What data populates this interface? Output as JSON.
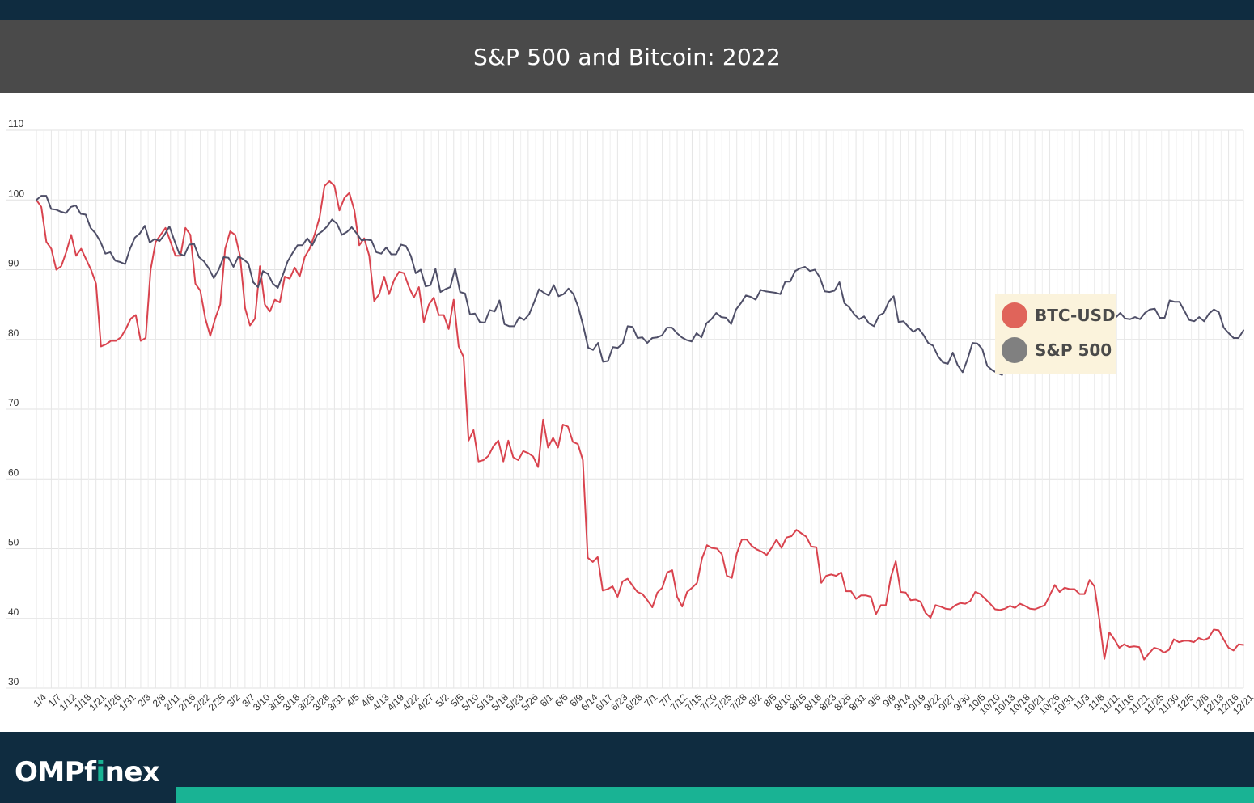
{
  "title": "S&P 500 and Bitcoin: 2022",
  "brand": {
    "logo_prefix": "OMPf",
    "logo_dot_letter": "i",
    "logo_suffix": "nex"
  },
  "colors": {
    "header_dark": "#0f2c40",
    "title_bar": "#4a4a4a",
    "accent": "#19b394",
    "btc": "#d9434e",
    "sp500": "#4f4f68",
    "legend_bg": "#fbf3dc"
  },
  "legend": {
    "placement": "right",
    "entries": [
      {
        "name": "BTC-USD",
        "dot_color": "#e0645a"
      },
      {
        "name": "S&P 500",
        "dot_color": "#808080"
      }
    ]
  },
  "chart_data": {
    "type": "line",
    "title": "S&P 500 and Bitcoin: 2022",
    "xlabel": "",
    "ylabel": "",
    "ylim": [
      30,
      110
    ],
    "yticks": [
      30,
      40,
      50,
      60,
      70,
      80,
      90,
      100,
      110
    ],
    "grid": true,
    "x_tick_labels": [
      "1/4",
      "1/7",
      "1/12",
      "1/18",
      "1/21",
      "1/26",
      "1/31",
      "2/3",
      "2/8",
      "2/11",
      "2/16",
      "2/22",
      "2/25",
      "3/2",
      "3/7",
      "3/10",
      "3/15",
      "3/18",
      "3/23",
      "3/28",
      "3/31",
      "4/5",
      "4/8",
      "4/13",
      "4/19",
      "4/22",
      "4/27",
      "5/2",
      "5/5",
      "5/10",
      "5/13",
      "5/18",
      "5/23",
      "5/26",
      "6/1",
      "6/6",
      "6/9",
      "6/14",
      "6/17",
      "6/23",
      "6/28",
      "7/1",
      "7/7",
      "7/12",
      "7/15",
      "7/20",
      "7/25",
      "7/28",
      "8/2",
      "8/5",
      "8/10",
      "8/15",
      "8/18",
      "8/23",
      "8/26",
      "8/31",
      "9/6",
      "9/9",
      "9/14",
      "9/19",
      "9/22",
      "9/27",
      "9/30",
      "10/5",
      "10/10",
      "10/13",
      "10/18",
      "10/21",
      "10/26",
      "10/31",
      "11/3",
      "11/8",
      "11/11",
      "11/16",
      "11/21",
      "11/25",
      "11/30",
      "12/5",
      "12/8",
      "12/13",
      "12/16",
      "12/21"
    ],
    "series": [
      {
        "name": "BTC-USD",
        "color": "#d9434e",
        "values": [
          100,
          99,
          94,
          93,
          90,
          90.5,
          92.5,
          95,
          92,
          93,
          91.5,
          90,
          88,
          79,
          79.3,
          79.8,
          79.8,
          80.3,
          81.5,
          83,
          83.5,
          79.8,
          80.2,
          90,
          94,
          95,
          96,
          94,
          92,
          92,
          96,
          95,
          88,
          87,
          83,
          80.5,
          83,
          85,
          93,
          95.5,
          95,
          92,
          84.5,
          82,
          83,
          90.5,
          85,
          84,
          85.7,
          85.3,
          89,
          88.7,
          90.3,
          89,
          91.8,
          93,
          95,
          97.5,
          102,
          102.7,
          102,
          98.5,
          100.3,
          101,
          98.5,
          93.5,
          94.5,
          92,
          85.5,
          86.5,
          89,
          86.5,
          88.5,
          89.7,
          89.5,
          87.5,
          86,
          87.5,
          82.5,
          85,
          86,
          83.5,
          83.5,
          81.5,
          85.7,
          79,
          77.5,
          65.5,
          67,
          62.5,
          62.7,
          63.3,
          64.7,
          65.5,
          62.5,
          65.5,
          63.1,
          62.7,
          64,
          63.7,
          63.2,
          61.7,
          68.5,
          64.5,
          65.9,
          64.5,
          67.8,
          67.5,
          65.3,
          65,
          62.7,
          48.7,
          48.1,
          48.8,
          44,
          44.2,
          44.6,
          43.1,
          45.3,
          45.7,
          44.7,
          43.8,
          43.5,
          42.6,
          41.6,
          43.7,
          44.4,
          46.6,
          46.9,
          43.1,
          41.7,
          43.8,
          44.4,
          45.1,
          48.6,
          50.5,
          50.1,
          50,
          49.2,
          46.1,
          45.8,
          49.3,
          51.3,
          51.3,
          50.4,
          49.9,
          49.6,
          49.1,
          50.1,
          51.3,
          50.1,
          51.6,
          51.8,
          52.7,
          52.2,
          51.7,
          50.3,
          50.2,
          45.1,
          46.1,
          46.3,
          46.1,
          46.6,
          43.9,
          43.9,
          42.8,
          43.3,
          43.3,
          43.1,
          40.6,
          41.9,
          41.9,
          45.9,
          48.2,
          43.8,
          43.7,
          42.6,
          42.7,
          42.4,
          40.8,
          40.1,
          41.9,
          41.7,
          41.4,
          41.3,
          41.9,
          42.2,
          42.1,
          42.5,
          43.8,
          43.5,
          42.8,
          42.1,
          41.3,
          41.2,
          41.4,
          41.8,
          41.5,
          42.1,
          41.8,
          41.4,
          41.3,
          41.6,
          41.9,
          43.3,
          44.8,
          43.8,
          44.4,
          44.2,
          44.2,
          43.5,
          43.5,
          45.5,
          44.6,
          39.8,
          34.2,
          38,
          37,
          35.8,
          36.3,
          35.9,
          36,
          35.9,
          34.1,
          35,
          35.8,
          35.6,
          35.1,
          35.5,
          37,
          36.6,
          36.8,
          36.8,
          36.6,
          37.2,
          36.9,
          37.2,
          38.4,
          38.3,
          37,
          35.8,
          35.4,
          36.3,
          36.2
        ]
      },
      {
        "name": "S&P 500",
        "color": "#4f4f68",
        "values": [
          100,
          100.6,
          100.6,
          98.7,
          98.6,
          98.3,
          98.1,
          99,
          99.2,
          98,
          97.9,
          96,
          95.2,
          94,
          92.3,
          92.5,
          91.3,
          91.1,
          90.8,
          93,
          94.6,
          95.2,
          96.3,
          93.9,
          94.4,
          94.1,
          95,
          96.2,
          94.2,
          92.3,
          92,
          93.6,
          93.7,
          91.8,
          91.2,
          90.2,
          88.8,
          90,
          91.8,
          91.7,
          90.4,
          91.9,
          91.5,
          90.9,
          88.2,
          87.5,
          89.8,
          89.4,
          88,
          87.4,
          89.2,
          91.2,
          92.4,
          93.5,
          93.5,
          94.5,
          93.5,
          95,
          95.5,
          96.2,
          97.2,
          96.6,
          95,
          95.4,
          96.1,
          95.2,
          94.2,
          94.3,
          94.2,
          92.5,
          92.3,
          93.2,
          92.2,
          92.2,
          93.6,
          93.4,
          92,
          89.5,
          90,
          87.6,
          87.8,
          90.1,
          86.8,
          87.2,
          87.5,
          90.2,
          86.8,
          86.6,
          83.6,
          83.7,
          82.5,
          82.4,
          84.2,
          84,
          85.6,
          82.2,
          81.9,
          81.9,
          83.2,
          82.8,
          83.6,
          85.3,
          87.2,
          86.7,
          86.3,
          87.8,
          86.2,
          86.5,
          87.3,
          86.5,
          84.6,
          81.9,
          78.8,
          78.5,
          79.5,
          76.8,
          76.9,
          78.9,
          78.8,
          79.4,
          81.9,
          81.8,
          80.2,
          80.3,
          79.5,
          80.2,
          80.3,
          80.6,
          81.7,
          81.7,
          80.9,
          80.3,
          79.9,
          79.7,
          80.9,
          80.3,
          82.3,
          82.9,
          83.8,
          83.2,
          83.1,
          82.2,
          84.3,
          85.2,
          86.3,
          86.1,
          85.7,
          87.1,
          86.9,
          86.8,
          86.7,
          86.5,
          88.3,
          88.3,
          89.8,
          90.2,
          90.4,
          89.8,
          90,
          88.9,
          86.9,
          86.8,
          87,
          88.2,
          85.2,
          84.6,
          83.6,
          82.9,
          83.3,
          82.3,
          81.9,
          83.4,
          83.8,
          85.4,
          86.2,
          82.5,
          82.6,
          81.8,
          81.1,
          81.6,
          80.7,
          79.5,
          79.1,
          77.6,
          76.7,
          76.5,
          78.1,
          76.3,
          75.3,
          77.2,
          79.5,
          79.4,
          78.6,
          76.2,
          75.6,
          75.2,
          74.9,
          76.9,
          75.1,
          77.3,
          78,
          77.6,
          76.9,
          78.8,
          79.6,
          80.9,
          80.3,
          80,
          81.7,
          81.1,
          80.7,
          78.6,
          77.9,
          78.9,
          79.7,
          80.2,
          78.8,
          83.1,
          83.7,
          83.1,
          83.8,
          83,
          82.9,
          83.2,
          82.9,
          83.8,
          84.3,
          84.4,
          83.1,
          83.1,
          85.6,
          85.4,
          85.4,
          84.1,
          82.8,
          82.6,
          83.2,
          82.6,
          83.7,
          84.3,
          83.9,
          81.7,
          80.9,
          80.2,
          80.2,
          81.3
        ]
      }
    ]
  }
}
